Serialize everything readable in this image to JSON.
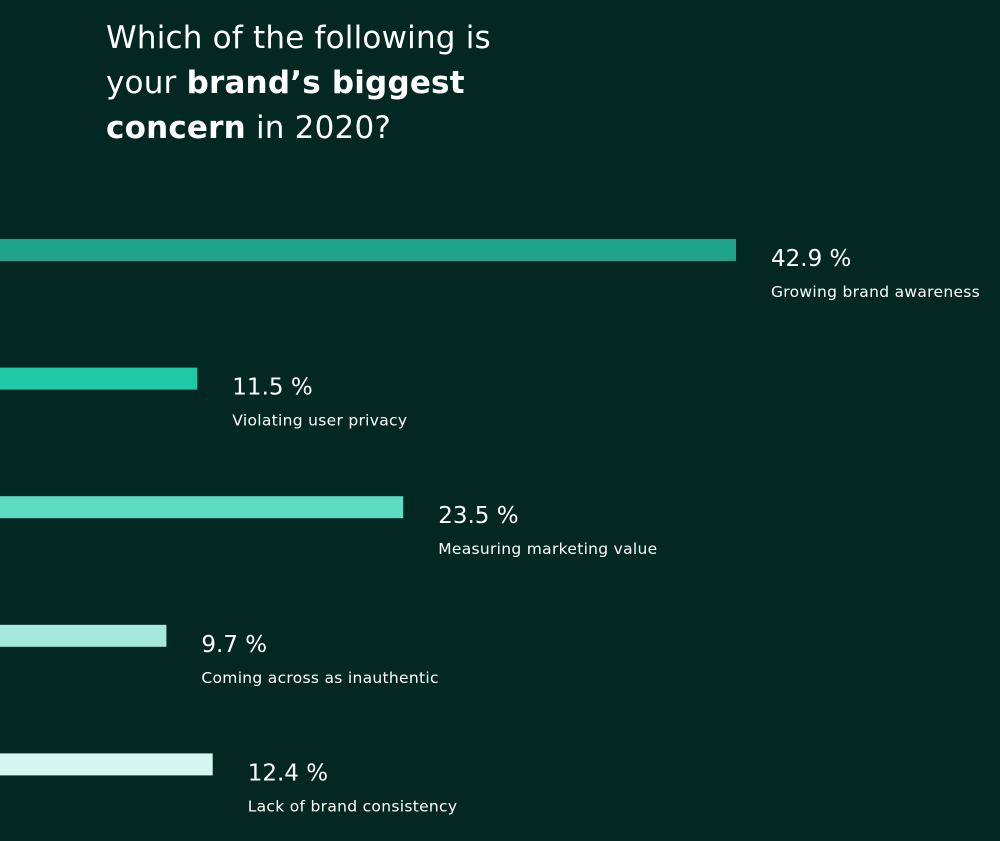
{
  "title": {
    "line1": "Which of the following is",
    "line2_pre": "your ",
    "line2_bold": "brand’s biggest",
    "line3_bold": "concern",
    "line3_post": " in 2020?"
  },
  "chart_data": {
    "type": "bar",
    "orientation": "horizontal",
    "title": "Which of the following is your brand’s biggest concern in 2020?",
    "categories": [
      "Growing brand awareness",
      "Violating user privacy",
      "Measuring marketing value",
      "Coming across as inauthentic",
      "Lack of brand consistency"
    ],
    "values": [
      42.9,
      11.5,
      23.5,
      9.7,
      12.4
    ],
    "value_labels": [
      "42.9 %",
      "11.5 %",
      "23.5 %",
      "9.7 %",
      "12.4 %"
    ],
    "unit": "%",
    "colors": [
      "#1fa38b",
      "#20c9a6",
      "#5ddcc2",
      "#a4e9dc",
      "#d5f5ef"
    ],
    "grid": false,
    "legend": "none"
  }
}
